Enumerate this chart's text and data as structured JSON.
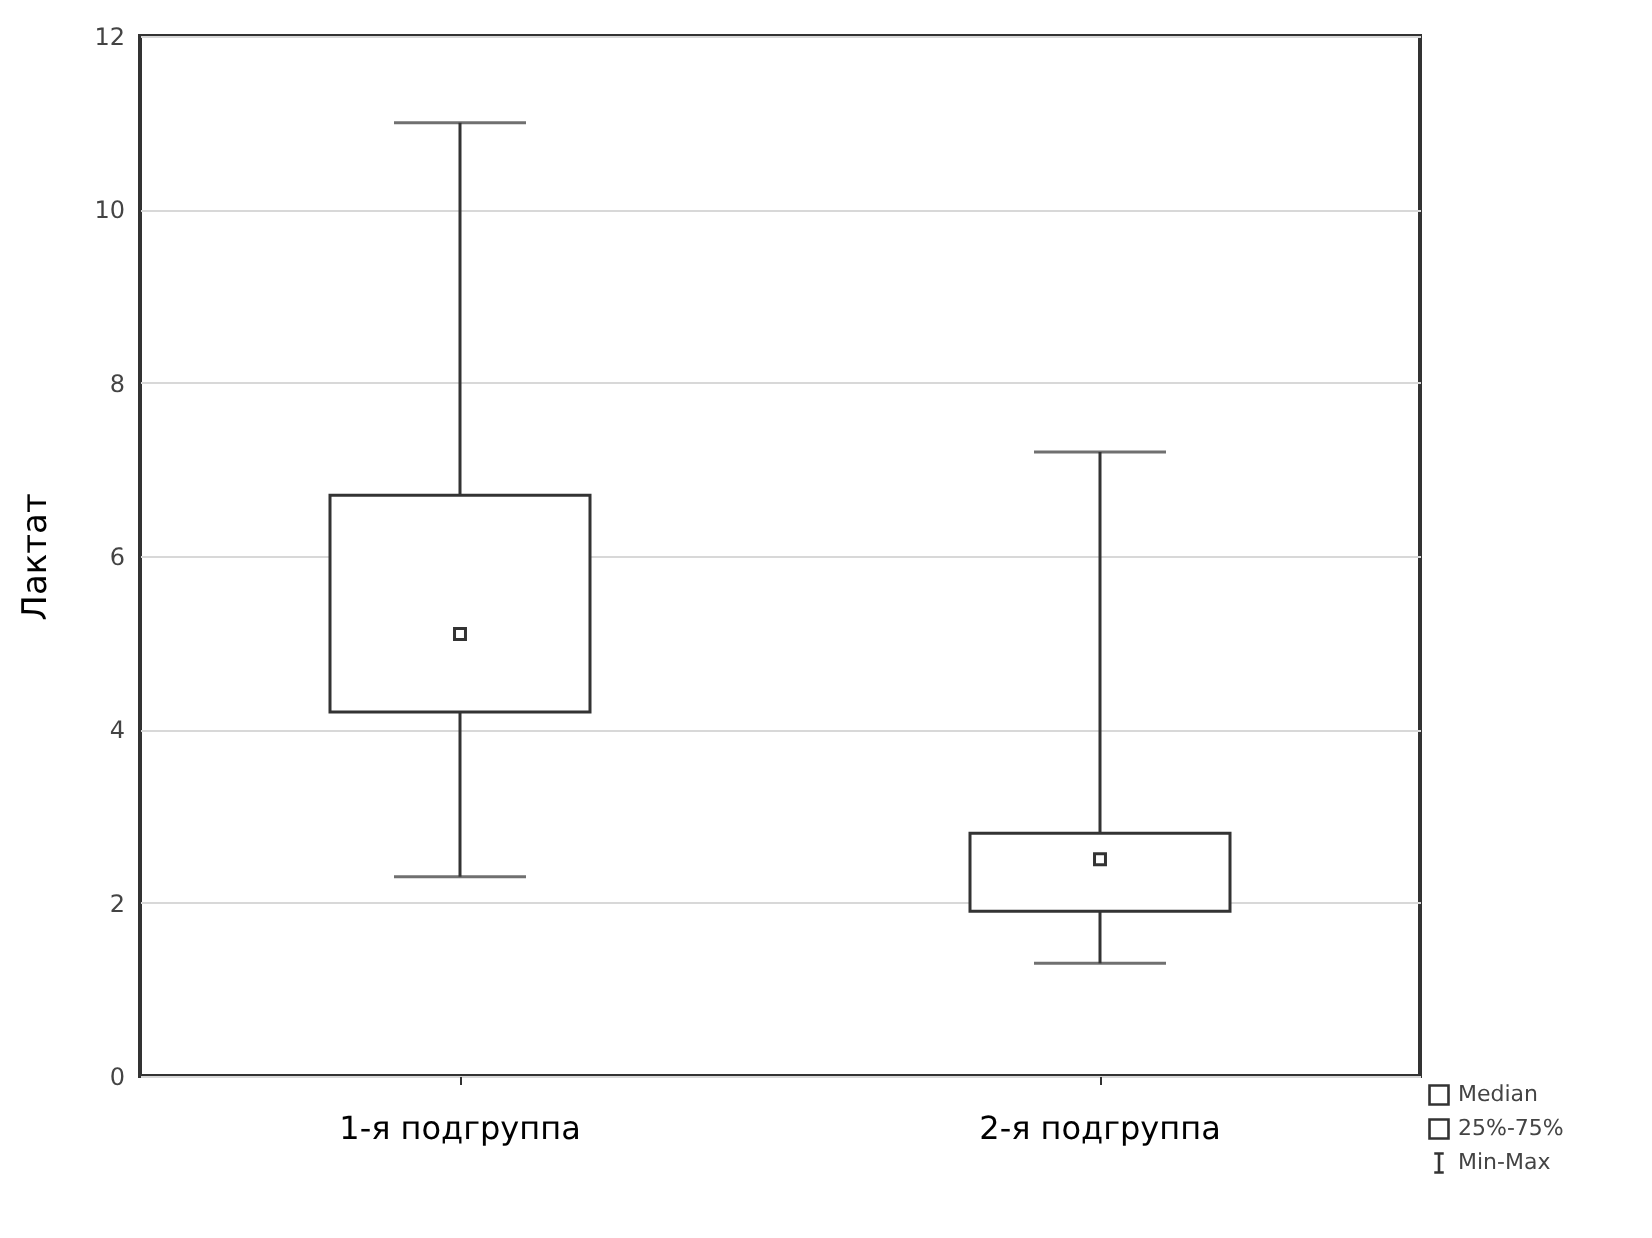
{
  "chart_data": {
    "type": "box",
    "ylabel": "Лактат",
    "categories": [
      "1-я подгруппа",
      "2-я подгруппа"
    ],
    "boxes": [
      {
        "low": 2.3,
        "q1": 4.2,
        "median": 5.1,
        "q3": 6.7,
        "high": 11
      },
      {
        "low": 1.3,
        "q1": 1.9,
        "median": 2.5,
        "q3": 2.8,
        "high": 7.2
      }
    ],
    "ylim": [
      0,
      12
    ],
    "yticks": [
      0,
      2,
      4,
      6,
      8,
      10,
      12
    ],
    "grid": "y",
    "marker": "square",
    "annotations": [
      "Median",
      "25%-75%",
      "Min-Max"
    ]
  }
}
